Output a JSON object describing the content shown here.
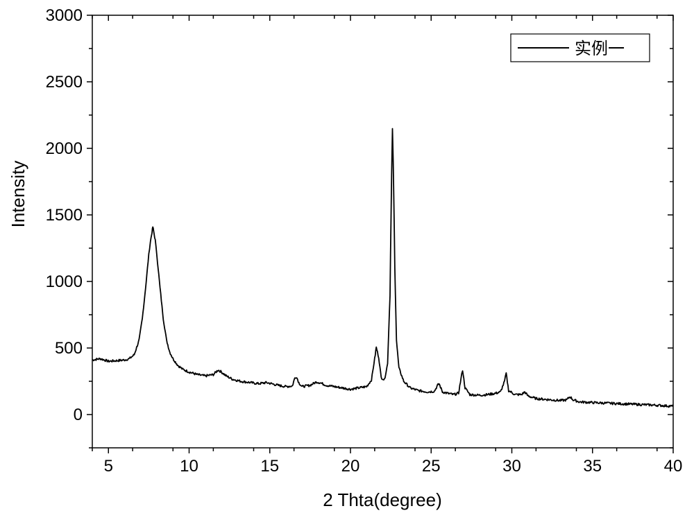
{
  "chart_data": {
    "type": "line",
    "title": "",
    "xlabel": "2 Thta(degree)",
    "ylabel": "Intensity",
    "xlim": [
      4,
      40
    ],
    "ylim": [
      -250,
      3000
    ],
    "x_ticks": [
      5,
      10,
      15,
      20,
      25,
      30,
      35,
      40
    ],
    "y_ticks": [
      0,
      500,
      1000,
      1500,
      2000,
      2500,
      3000
    ],
    "grid": false,
    "legend_position": "top-right",
    "series": [
      {
        "name": "实例一",
        "color": "#000000",
        "points": [
          [
            4.0,
            410
          ],
          [
            4.5,
            420
          ],
          [
            5.0,
            400
          ],
          [
            5.5,
            405
          ],
          [
            6.0,
            410
          ],
          [
            6.3,
            420
          ],
          [
            6.6,
            450
          ],
          [
            6.9,
            560
          ],
          [
            7.1,
            720
          ],
          [
            7.3,
            950
          ],
          [
            7.5,
            1200
          ],
          [
            7.6,
            1300
          ],
          [
            7.7,
            1370
          ],
          [
            7.75,
            1410
          ],
          [
            7.8,
            1380
          ],
          [
            7.9,
            1310
          ],
          [
            8.0,
            1200
          ],
          [
            8.2,
            950
          ],
          [
            8.4,
            720
          ],
          [
            8.6,
            560
          ],
          [
            8.8,
            470
          ],
          [
            9.0,
            420
          ],
          [
            9.3,
            370
          ],
          [
            9.6,
            340
          ],
          [
            10.0,
            320
          ],
          [
            10.5,
            300
          ],
          [
            11.0,
            290
          ],
          [
            11.5,
            300
          ],
          [
            11.8,
            335
          ],
          [
            12.0,
            320
          ],
          [
            12.3,
            290
          ],
          [
            12.7,
            265
          ],
          [
            13.2,
            250
          ],
          [
            13.8,
            240
          ],
          [
            14.3,
            232
          ],
          [
            14.8,
            240
          ],
          [
            15.0,
            235
          ],
          [
            15.5,
            220
          ],
          [
            16.0,
            210
          ],
          [
            16.4,
            215
          ],
          [
            16.55,
            275
          ],
          [
            16.65,
            285
          ],
          [
            16.8,
            240
          ],
          [
            17.0,
            210
          ],
          [
            17.5,
            220
          ],
          [
            17.9,
            245
          ],
          [
            18.1,
            240
          ],
          [
            18.5,
            220
          ],
          [
            19.0,
            210
          ],
          [
            19.5,
            200
          ],
          [
            20.0,
            190
          ],
          [
            20.5,
            200
          ],
          [
            21.0,
            210
          ],
          [
            21.3,
            260
          ],
          [
            21.5,
            420
          ],
          [
            21.6,
            505
          ],
          [
            21.75,
            430
          ],
          [
            21.9,
            280
          ],
          [
            22.1,
            260
          ],
          [
            22.3,
            380
          ],
          [
            22.45,
            900
          ],
          [
            22.55,
            1800
          ],
          [
            22.6,
            2145
          ],
          [
            22.65,
            1900
          ],
          [
            22.75,
            1100
          ],
          [
            22.85,
            560
          ],
          [
            23.0,
            350
          ],
          [
            23.3,
            250
          ],
          [
            23.7,
            200
          ],
          [
            24.2,
            180
          ],
          [
            24.8,
            170
          ],
          [
            25.2,
            175
          ],
          [
            25.4,
            220
          ],
          [
            25.5,
            230
          ],
          [
            25.7,
            170
          ],
          [
            26.0,
            160
          ],
          [
            26.4,
            150
          ],
          [
            26.7,
            160
          ],
          [
            26.85,
            270
          ],
          [
            26.95,
            335
          ],
          [
            27.1,
            200
          ],
          [
            27.4,
            150
          ],
          [
            28.0,
            145
          ],
          [
            28.5,
            150
          ],
          [
            29.0,
            160
          ],
          [
            29.3,
            170
          ],
          [
            29.55,
            250
          ],
          [
            29.65,
            310
          ],
          [
            29.8,
            180
          ],
          [
            30.2,
            150
          ],
          [
            30.6,
            150
          ],
          [
            30.8,
            170
          ],
          [
            31.0,
            140
          ],
          [
            31.5,
            120
          ],
          [
            32.0,
            115
          ],
          [
            32.5,
            110
          ],
          [
            33.0,
            105
          ],
          [
            33.4,
            110
          ],
          [
            33.6,
            135
          ],
          [
            33.8,
            110
          ],
          [
            34.2,
            95
          ],
          [
            35.0,
            90
          ],
          [
            36.0,
            85
          ],
          [
            37.0,
            80
          ],
          [
            38.0,
            75
          ],
          [
            39.0,
            70
          ],
          [
            40.0,
            62
          ]
        ]
      }
    ]
  }
}
